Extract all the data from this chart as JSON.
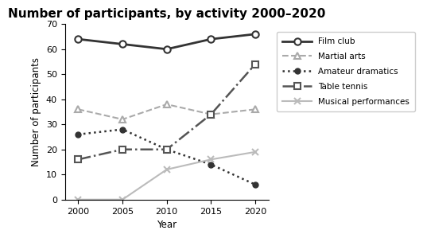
{
  "title": "Number of participants, by activity 2000–2020",
  "xlabel": "Year",
  "ylabel": "Number of participants",
  "years": [
    2000,
    2005,
    2010,
    2015,
    2020
  ],
  "series": [
    {
      "name": "Film club",
      "values": [
        64,
        62,
        60,
        64,
        66
      ],
      "color": "#333333",
      "linestyle": "-",
      "marker": "o",
      "markersize": 6,
      "linewidth": 2.0,
      "markerfacecolor": "white",
      "markeredgewidth": 1.5
    },
    {
      "name": "Martial arts",
      "values": [
        36,
        32,
        38,
        34,
        36
      ],
      "color": "#aaaaaa",
      "linestyle": "--",
      "marker": "^",
      "markersize": 6,
      "linewidth": 1.5,
      "markerfacecolor": "white",
      "markeredgewidth": 1.5
    },
    {
      "name": "Amateur dramatics",
      "values": [
        26,
        28,
        20,
        14,
        6
      ],
      "color": "#333333",
      "linestyle": ":",
      "marker": "o",
      "markersize": 5,
      "linewidth": 1.8,
      "markerfacecolor": "#333333",
      "markeredgewidth": 1.0
    },
    {
      "name": "Table tennis",
      "values": [
        16,
        20,
        20,
        34,
        54
      ],
      "color": "#555555",
      "linestyle": "-.",
      "marker": "s",
      "markersize": 6,
      "linewidth": 1.8,
      "markerfacecolor": "white",
      "markeredgewidth": 1.5
    },
    {
      "name": "Musical performances",
      "values": [
        0,
        0,
        12,
        16,
        19
      ],
      "color": "#bbbbbb",
      "linestyle": "-",
      "marker": "x",
      "markersize": 6,
      "linewidth": 1.5,
      "markerfacecolor": "#bbbbbb",
      "markeredgewidth": 1.5
    }
  ],
  "ylim": [
    0,
    70
  ],
  "yticks": [
    0,
    10,
    20,
    30,
    40,
    50,
    60,
    70
  ],
  "legend_fontsize": 7.5,
  "title_fontsize": 11,
  "label_fontsize": 8.5,
  "tick_fontsize": 8,
  "background_color": "#ffffff"
}
